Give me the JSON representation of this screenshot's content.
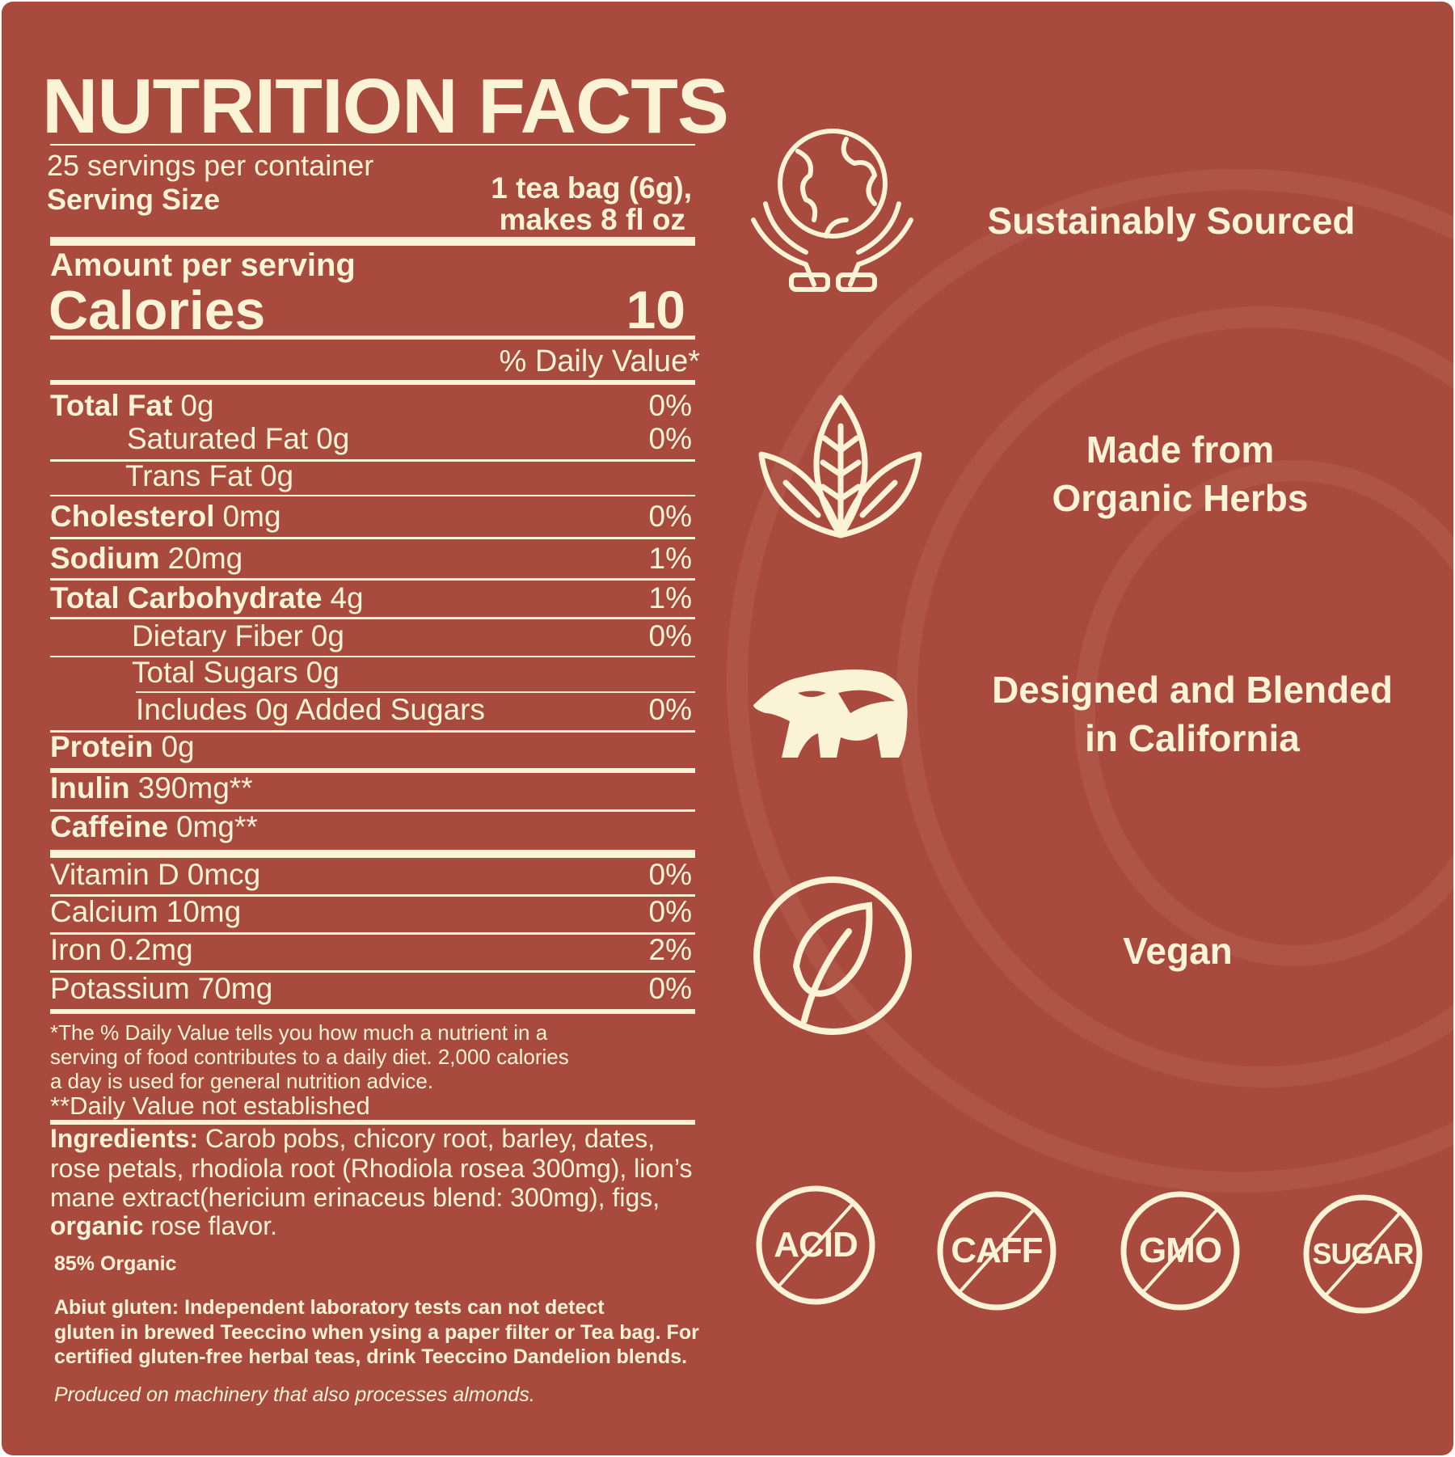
{
  "colors": {
    "background": "#a84a3e",
    "foreground": "#fbf3d5"
  },
  "title": "NUTRITION FACTS",
  "servings": "25 servings per container",
  "serving_size_label": "Serving Size",
  "serving_size_value": [
    "1 tea bag (6g),",
    "makes 8 fl oz"
  ],
  "amount_per_serving": "Amount per serving",
  "calories_label": "Calories",
  "calories_value": "10",
  "daily_value_header": "% Daily Value*",
  "rows": [
    {
      "name": "Total Fat",
      "amount": "0g",
      "dv": "0%"
    },
    {
      "name": "Saturated Fat",
      "amount": "0g",
      "dv": "0%"
    },
    {
      "name": "Trans Fat",
      "amount": "0g",
      "dv": ""
    },
    {
      "name": "Cholesterol",
      "amount": "0mg",
      "dv": "0%"
    },
    {
      "name": "Sodium",
      "amount": "20mg",
      "dv": "1%"
    },
    {
      "name": "Total Carbohydrate",
      "amount": "4g",
      "dv": "1%"
    },
    {
      "name": "Dietary Fiber",
      "amount": "0g",
      "dv": "0%"
    },
    {
      "name": "Total Sugars",
      "amount": "0g",
      "dv": ""
    },
    {
      "name": "Includes 0g Added Sugars",
      "amount": "",
      "dv": "0%"
    },
    {
      "name": "Protein",
      "amount": "0g",
      "dv": ""
    },
    {
      "name": "Inulin",
      "amount": "390mg**",
      "dv": ""
    },
    {
      "name": "Caffeine",
      "amount": "0mg**",
      "dv": ""
    },
    {
      "name": "Vitamin D",
      "amount": "0mcg",
      "dv": "0%"
    },
    {
      "name": "Calcium",
      "amount": "10mg",
      "dv": "0%"
    },
    {
      "name": "Iron",
      "amount": "0.2mg",
      "dv": "2%"
    },
    {
      "name": "Potassium",
      "amount": "70mg",
      "dv": "0%"
    }
  ],
  "footnote": [
    "*The % Daily Value tells you how much a nutrient in a",
    "serving of food contributes to a daily diet. 2,000 calories",
    "a day is used for general nutrition advice.",
    "**Daily Value not established"
  ],
  "ingredients": {
    "label": "Ingredients:",
    "lines": [
      " Carob pobs, chicory root, barley, dates,",
      "rose petals, rhodiola root (Rhodiola rosea 300mg), lion’s",
      "mane extract(hericium erinaceus blend: 300mg), figs,"
    ],
    "last_bold": "organic",
    "last_rest": " rose flavor."
  },
  "organic_pct": "85% Organic",
  "gluten": [
    "Abiut gluten: Independent laboratory tests can not detect",
    "gluten in brewed Teeccino when ysing a paper filter or Tea bag. For",
    "certified gluten-free herbal teas, drink Teeccino Dandelion blends."
  ],
  "allergen": "Produced on machinery that also processes almonds.",
  "features": [
    {
      "icon": "globe-hands-icon",
      "label": [
        "Sustainably Sourced"
      ]
    },
    {
      "icon": "leaves-icon",
      "label": [
        "Made from",
        "Organic Herbs"
      ]
    },
    {
      "icon": "bear-icon",
      "label": [
        "Designed and Blended",
        "in California"
      ]
    },
    {
      "icon": "leaf-circle-icon",
      "label": [
        "Vegan"
      ]
    }
  ],
  "free_badges": [
    "ACID",
    "CAFF",
    "GMO",
    "SUGAR"
  ]
}
